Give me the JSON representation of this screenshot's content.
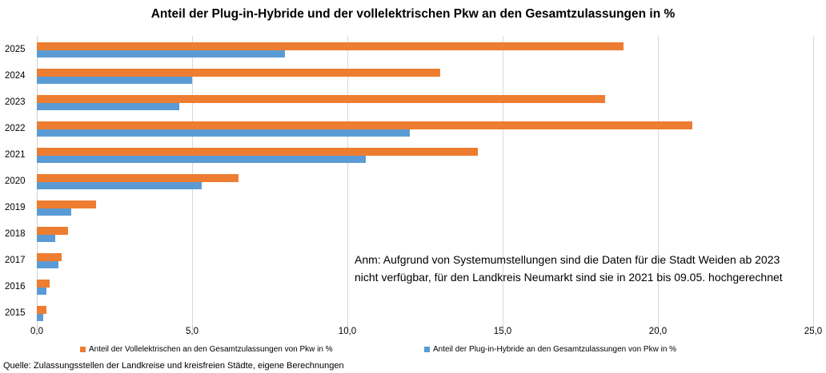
{
  "chart": {
    "title": "Anteil der Plug-in-Hybride und der vollelektrischen Pkw an den Gesamtzulassungen in %"
  },
  "chart_data": {
    "type": "bar",
    "orientation": "horizontal",
    "title": "Anteil der Plug-in-Hybride und der vollelektrischen Pkw an den Gesamtzulassungen in %",
    "categories": [
      "2025",
      "2024",
      "2023",
      "2022",
      "2021",
      "2020",
      "2019",
      "2018",
      "2017",
      "2016",
      "2015"
    ],
    "series": [
      {
        "key": "vollelektrische",
        "name": "Anteil der Vollelektrischen an den Gesamtzulassungen von Pkw in %",
        "color": "#ED7D31",
        "values": [
          18.9,
          13.0,
          18.3,
          21.1,
          14.2,
          6.5,
          1.9,
          1.0,
          0.8,
          0.4,
          0.3
        ]
      },
      {
        "key": "plug-in-hybride",
        "name": "Anteil der Plug-in-Hybride an den Gesamtzulassungen von Pkw in %",
        "color": "#5B9BD5",
        "values": [
          8.0,
          5.0,
          4.6,
          12.0,
          10.6,
          5.3,
          1.1,
          0.6,
          0.7,
          0.3,
          0.2
        ]
      }
    ],
    "xlim": [
      0,
      25
    ],
    "x_ticks": [
      "0,0",
      "5,0",
      "10,0",
      "15,0",
      "20,0",
      "25,0"
    ],
    "x_tick_values": [
      0,
      5,
      10,
      15,
      20,
      25
    ],
    "grid": "vertical",
    "legend_position": "bottom"
  },
  "annotation": {
    "lines": [
      "Anm: Aufgrund von Systemumstellungen sind die Daten für die Stadt Weiden ab 2023",
      "nicht verfügbar, für den Landkreis Neumarkt sind sie in 2021 bis 09.05. hochgerechnet"
    ]
  },
  "source": "Quelle: Zulassungsstellen der Landkreise und kreisfreien Städte, eigene Berechnungen",
  "colors": {
    "vollelektrische_orange": "#ED7D31",
    "plug_in_hybride_blue": "#5B9BD5",
    "gridline_gray": "#D9D9D9"
  }
}
